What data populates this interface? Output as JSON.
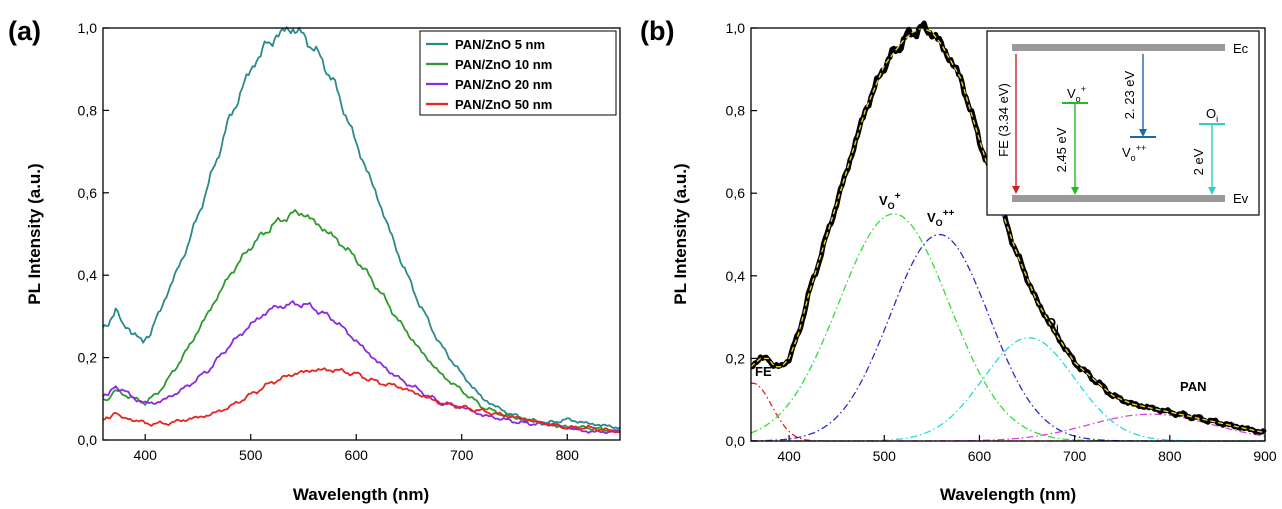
{
  "chart_data": [
    {
      "panel_label": "(a)",
      "type": "line",
      "xlabel": "Wavelength (nm)",
      "ylabel": "PL Intensity (a.u.)",
      "xlim": [
        360,
        850
      ],
      "ylim": [
        0,
        1.0
      ],
      "xticks": [
        400,
        500,
        600,
        700,
        800
      ],
      "xtick_labels": [
        "400",
        "500",
        "600",
        "700",
        "800"
      ],
      "yticks": [
        0,
        0.2,
        0.4,
        0.6,
        0.8,
        1.0
      ],
      "ytick_labels": [
        "0,0",
        "0,2",
        "0,4",
        "0,6",
        "0,8",
        "1,0"
      ],
      "grid": false,
      "legend": "top-right",
      "series": [
        {
          "name": "PAN/ZnO 5 nm",
          "color": "#2a8a8a",
          "x": [
            360,
            365,
            372,
            378,
            385,
            392,
            398,
            405,
            420,
            440,
            460,
            480,
            500,
            515,
            530,
            540,
            550,
            560,
            570,
            580,
            590,
            600,
            620,
            640,
            660,
            680,
            700,
            720,
            740,
            760,
            780,
            800,
            820,
            850
          ],
          "y": [
            0.27,
            0.28,
            0.32,
            0.28,
            0.27,
            0.25,
            0.24,
            0.26,
            0.35,
            0.47,
            0.62,
            0.78,
            0.9,
            0.96,
            0.99,
            1.0,
            0.98,
            0.95,
            0.91,
            0.86,
            0.79,
            0.72,
            0.59,
            0.45,
            0.33,
            0.23,
            0.16,
            0.1,
            0.07,
            0.05,
            0.04,
            0.05,
            0.04,
            0.03
          ]
        },
        {
          "name": "PAN/ZnO 10 nm",
          "color": "#2e9a2e",
          "x": [
            360,
            365,
            372,
            380,
            390,
            400,
            410,
            420,
            440,
            460,
            480,
            500,
            520,
            540,
            550,
            560,
            570,
            580,
            600,
            620,
            640,
            660,
            680,
            700,
            720,
            740,
            760,
            780,
            800,
            820,
            850
          ],
          "y": [
            0.1,
            0.1,
            0.12,
            0.11,
            0.1,
            0.09,
            0.11,
            0.14,
            0.22,
            0.31,
            0.4,
            0.47,
            0.52,
            0.55,
            0.55,
            0.53,
            0.51,
            0.49,
            0.44,
            0.37,
            0.29,
            0.22,
            0.16,
            0.12,
            0.08,
            0.06,
            0.05,
            0.04,
            0.03,
            0.03,
            0.02
          ]
        },
        {
          "name": "PAN/ZnO 20 nm",
          "color": "#8a2be2",
          "x": [
            360,
            365,
            372,
            380,
            390,
            400,
            410,
            420,
            440,
            460,
            480,
            500,
            520,
            540,
            550,
            560,
            580,
            600,
            620,
            640,
            660,
            680,
            700,
            720,
            740,
            760,
            780,
            800,
            820,
            850
          ],
          "y": [
            0.11,
            0.11,
            0.13,
            0.12,
            0.1,
            0.09,
            0.09,
            0.1,
            0.13,
            0.17,
            0.23,
            0.28,
            0.32,
            0.33,
            0.33,
            0.32,
            0.29,
            0.24,
            0.19,
            0.15,
            0.12,
            0.09,
            0.08,
            0.06,
            0.05,
            0.04,
            0.04,
            0.03,
            0.02,
            0.02
          ]
        },
        {
          "name": "PAN/ZnO 50 nm",
          "color": "#e8241e",
          "x": [
            360,
            365,
            372,
            380,
            390,
            400,
            420,
            440,
            460,
            480,
            500,
            520,
            540,
            560,
            580,
            600,
            620,
            640,
            660,
            680,
            700,
            720,
            740,
            760,
            780,
            800,
            820,
            850
          ],
          "y": [
            0.05,
            0.05,
            0.07,
            0.05,
            0.05,
            0.04,
            0.04,
            0.05,
            0.06,
            0.08,
            0.11,
            0.14,
            0.16,
            0.17,
            0.17,
            0.16,
            0.14,
            0.13,
            0.11,
            0.09,
            0.08,
            0.07,
            0.06,
            0.05,
            0.04,
            0.03,
            0.03,
            0.02
          ]
        }
      ]
    },
    {
      "panel_label": "(b)",
      "type": "line",
      "xlabel": "Wavelength (nm)",
      "ylabel": "PL Intensity (a.u.)",
      "xlim": [
        360,
        900
      ],
      "ylim": [
        0,
        1.0
      ],
      "xticks": [
        400,
        500,
        600,
        700,
        800,
        900
      ],
      "xtick_labels": [
        "400",
        "500",
        "600",
        "700",
        "800",
        "900"
      ],
      "yticks": [
        0,
        0.2,
        0.4,
        0.6,
        0.8,
        1.0
      ],
      "ytick_labels": [
        "0,0",
        "0,2",
        "0,4",
        "0,6",
        "0,8",
        "1,0"
      ],
      "grid": false,
      "series": [
        {
          "name": "",
          "color": "#000000",
          "x": [
            360,
            370,
            378,
            385,
            392,
            400,
            410,
            420,
            440,
            460,
            480,
            500,
            520,
            530,
            540,
            550,
            560,
            580,
            600,
            620,
            640,
            660,
            680,
            700,
            720,
            740,
            760,
            780,
            800,
            820,
            840,
            860,
            880,
            900
          ],
          "y": [
            0.18,
            0.2,
            0.2,
            0.18,
            0.18,
            0.2,
            0.26,
            0.35,
            0.5,
            0.65,
            0.8,
            0.91,
            0.97,
            0.99,
            1.0,
            0.99,
            0.96,
            0.88,
            0.73,
            0.58,
            0.45,
            0.34,
            0.26,
            0.19,
            0.15,
            0.11,
            0.09,
            0.08,
            0.07,
            0.06,
            0.05,
            0.04,
            0.03,
            0.02
          ]
        },
        {
          "name": "",
          "color": "#e6d020",
          "x": [
            360,
            370,
            378,
            385,
            392,
            400,
            410,
            420,
            440,
            460,
            480,
            500,
            520,
            530,
            540,
            550,
            560,
            580,
            600,
            620,
            640,
            660,
            680,
            700,
            720,
            740,
            760,
            780,
            800,
            820,
            840,
            860,
            880,
            900
          ],
          "y": [
            0.18,
            0.2,
            0.2,
            0.18,
            0.18,
            0.2,
            0.26,
            0.35,
            0.5,
            0.65,
            0.8,
            0.91,
            0.97,
            0.99,
            1.0,
            0.99,
            0.96,
            0.88,
            0.73,
            0.58,
            0.45,
            0.34,
            0.26,
            0.19,
            0.15,
            0.11,
            0.09,
            0.08,
            0.07,
            0.06,
            0.05,
            0.04,
            0.03,
            0.02
          ]
        },
        {
          "name": "",
          "color": "#e02020",
          "peak_nm": 362,
          "amplitude": 0.14,
          "width_nm": 20
        },
        {
          "name": "",
          "color": "#33dd33",
          "peak_nm": 510,
          "amplitude": 0.55,
          "width_nm": 58
        },
        {
          "name": "",
          "color": "#2b2bd0",
          "peak_nm": 558,
          "amplitude": 0.5,
          "width_nm": 52
        },
        {
          "name": "",
          "color": "#22dddd",
          "peak_nm": 652,
          "amplitude": 0.25,
          "width_nm": 48
        },
        {
          "name": "",
          "color": "#e040e0",
          "peak_nm": 780,
          "amplitude": 0.065,
          "width_nm": 65
        }
      ],
      "annotations": [
        {
          "text": "FE",
          "x": 370,
          "y": 0.215
        },
        {
          "text": "VO+",
          "x": 506,
          "y": 0.57
        },
        {
          "text": "VO++",
          "x": 562,
          "y": 0.52
        },
        {
          "text": "Oi",
          "x": 660,
          "y": 0.27
        },
        {
          "text": "PAN",
          "x": 800,
          "y": 0.08
        }
      ],
      "inset": {
        "band_top": "Ec",
        "band_bottom": "Ev",
        "transitions": [
          {
            "label": "FE (3.34 eV)",
            "color": "#cc2222"
          },
          {
            "label": "2.45 eV",
            "level": "VO+",
            "color": "#22bb22"
          },
          {
            "label": "2. 23 eV",
            "level": "VO++",
            "color": "#2266aa"
          },
          {
            "label": "2 eV",
            "level": "Oi",
            "color": "#33cccc"
          }
        ]
      }
    }
  ]
}
